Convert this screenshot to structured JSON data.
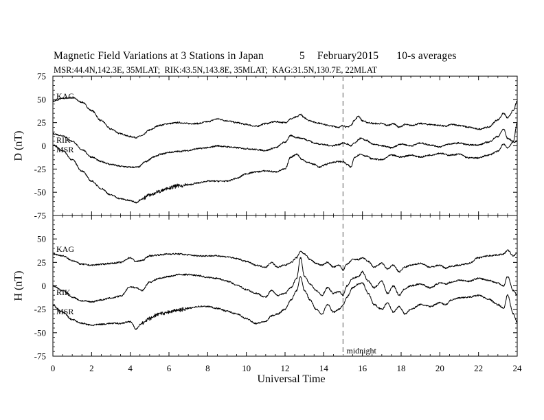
{
  "chart_data": [
    {
      "type": "line",
      "panel": "D",
      "title": "Magnetic Field Variations at 3 Stations in Japan",
      "date_day": "5",
      "date_month_year": "February2015",
      "averaging": "10-s averages",
      "subtitle": "MSR:44.4N,142.3E, 35MLAT;  RIK:43.5N,143.8E, 35MLAT;  KAG:31.5N,130.7E, 22MLAT",
      "ylabel": "D (nT)",
      "xlabel": "",
      "xlim": [
        0,
        24
      ],
      "ylim": [
        -75,
        75
      ],
      "yticks": [
        "75",
        "50",
        "25",
        "0",
        "-25",
        "-50",
        "-75"
      ],
      "series": [
        {
          "name": "KAG",
          "x": [
            0,
            0.5,
            1,
            1.5,
            2,
            2.5,
            3,
            3.5,
            4,
            4.3,
            4.6,
            5,
            5.5,
            6,
            6.5,
            7,
            7.5,
            8,
            8.5,
            9,
            9.5,
            10,
            10.5,
            11,
            11.5,
            12,
            12.3,
            12.6,
            12.8,
            13,
            13.3,
            13.6,
            13.9,
            14.2,
            14.5,
            14.8,
            15,
            15.2,
            15.4,
            15.6,
            15.8,
            16,
            16.3,
            16.6,
            17,
            17.3,
            17.6,
            17.9,
            18.2,
            18.5,
            19,
            19.5,
            20,
            20.3,
            20.6,
            21,
            21.5,
            22,
            22.5,
            23,
            23.3,
            23.5,
            23.8,
            24
          ],
          "y": [
            48,
            51,
            52,
            47,
            38,
            27,
            18,
            13,
            10,
            9,
            11,
            17,
            22,
            24,
            25,
            24,
            24,
            26,
            29,
            27,
            25,
            23,
            21,
            24,
            26,
            25,
            29,
            31,
            34,
            30,
            27,
            25,
            24,
            22,
            21,
            20,
            22,
            20,
            22,
            28,
            32,
            27,
            25,
            24,
            24,
            22,
            24,
            20,
            23,
            22,
            24,
            23,
            22,
            21,
            23,
            22,
            20,
            18,
            20,
            28,
            35,
            30,
            38,
            48
          ]
        },
        {
          "name": "RIK",
          "x": [
            0,
            0.5,
            1,
            1.5,
            2,
            2.5,
            3,
            3.5,
            4,
            4.4,
            4.8,
            5.2,
            5.6,
            6,
            6.5,
            7,
            7.5,
            8,
            8.5,
            9,
            9.5,
            10,
            10.5,
            11,
            11.5,
            12,
            12.3,
            12.6,
            12.9,
            13.2,
            13.5,
            13.8,
            14.1,
            14.4,
            14.7,
            15,
            15.2,
            15.4,
            15.6,
            15.9,
            16.2,
            16.5,
            17,
            17.5,
            18,
            18.5,
            19,
            19.5,
            20,
            20.5,
            21,
            21.5,
            22,
            22.5,
            23,
            23.3,
            23.5,
            23.8,
            24
          ],
          "y": [
            13,
            11,
            5,
            -4,
            -12,
            -17,
            -20,
            -22,
            -23,
            -23,
            -17,
            -12,
            -9,
            -7,
            -6,
            -5,
            -3,
            -2,
            0,
            -1,
            -2,
            -3,
            -4,
            -5,
            -2,
            4,
            11,
            9,
            8,
            6,
            3,
            2,
            1,
            0,
            1,
            3,
            2,
            0,
            3,
            8,
            6,
            2,
            0,
            -2,
            2,
            0,
            3,
            1,
            -1,
            2,
            3,
            1,
            1,
            4,
            10,
            18,
            8,
            5,
            25
          ]
        },
        {
          "name": "MSR",
          "x": [
            0,
            0.5,
            1,
            1.5,
            2,
            2.5,
            3,
            3.5,
            4,
            4.3,
            4.6,
            5,
            5.5,
            6,
            6.5,
            7,
            7.5,
            8,
            8.5,
            9,
            9.5,
            10,
            10.5,
            11,
            11.5,
            12,
            12.3,
            12.6,
            12.9,
            13.2,
            13.5,
            13.8,
            14.1,
            14.4,
            14.7,
            15,
            15.2,
            15.4,
            15.6,
            15.9,
            16.2,
            16.5,
            17,
            17.5,
            18,
            18.5,
            19,
            19.5,
            20,
            20.5,
            21,
            21.5,
            22,
            22.5,
            23,
            23.3,
            23.5,
            23.8,
            24
          ],
          "y": [
            1,
            -5,
            -15,
            -27,
            -38,
            -46,
            -53,
            -57,
            -59,
            -61,
            -57,
            -53,
            -49,
            -45,
            -43,
            -42,
            -40,
            -38,
            -38,
            -38,
            -35,
            -30,
            -28,
            -27,
            -28,
            -25,
            -12,
            -9,
            -15,
            -18,
            -20,
            -23,
            -20,
            -18,
            -17,
            -17,
            -20,
            -23,
            -12,
            -9,
            -11,
            -14,
            -15,
            -10,
            -12,
            -10,
            -12,
            -10,
            -8,
            -10,
            -9,
            -13,
            -13,
            -10,
            -6,
            2,
            -2,
            4,
            5
          ]
        }
      ]
    },
    {
      "type": "line",
      "panel": "H",
      "ylabel": "H (nT)",
      "xlabel": "Universal Time",
      "xlim": [
        0,
        24
      ],
      "ylim": [
        -75,
        75
      ],
      "xticks": [
        "0",
        "2",
        "4",
        "6",
        "8",
        "10",
        "12",
        "14",
        "16",
        "18",
        "20",
        "22",
        "24"
      ],
      "yticks": [
        "",
        "50",
        "25",
        "0",
        "-25",
        "-50",
        "-75"
      ],
      "annotation": "midnight",
      "midnight_ut": 15,
      "series": [
        {
          "name": "KAG",
          "x": [
            0,
            0.5,
            1,
            1.5,
            2,
            2.5,
            3,
            3.5,
            4,
            4.3,
            4.6,
            5,
            5.5,
            6,
            6.5,
            7,
            7.5,
            8,
            8.5,
            9,
            9.5,
            10,
            10.5,
            11,
            11.3,
            11.6,
            12,
            12.3,
            12.6,
            12.8,
            13,
            13.3,
            13.6,
            13.9,
            14.2,
            14.5,
            14.8,
            15,
            15.2,
            15.5,
            15.8,
            16,
            16.3,
            16.6,
            17,
            17.3,
            17.6,
            17.9,
            18.2,
            18.5,
            19,
            19.5,
            20,
            20.3,
            20.6,
            21,
            21.5,
            22,
            22.5,
            23,
            23.3,
            23.5,
            23.8,
            24
          ],
          "y": [
            34,
            32,
            27,
            23,
            22,
            23,
            24,
            25,
            30,
            26,
            27,
            32,
            33,
            34,
            34,
            33,
            32,
            32,
            32,
            31,
            29,
            26,
            22,
            20,
            25,
            20,
            22,
            25,
            30,
            37,
            34,
            28,
            24,
            22,
            25,
            20,
            22,
            17,
            23,
            28,
            28,
            30,
            26,
            20,
            24,
            18,
            22,
            15,
            20,
            22,
            24,
            20,
            22,
            19,
            21,
            22,
            24,
            30,
            32,
            33,
            34,
            38,
            32,
            35
          ]
        },
        {
          "name": "RIK",
          "x": [
            0,
            0.5,
            1,
            1.5,
            2,
            2.5,
            3,
            3.5,
            4,
            4.3,
            4.6,
            5,
            5.5,
            6,
            6.5,
            7,
            7.5,
            8,
            8.5,
            9,
            9.5,
            10,
            10.5,
            11,
            11.3,
            11.6,
            12,
            12.3,
            12.6,
            12.8,
            13,
            13.3,
            13.6,
            13.9,
            14.2,
            14.5,
            14.8,
            15,
            15.2,
            15.5,
            15.8,
            16,
            16.3,
            16.6,
            17,
            17.3,
            17.6,
            17.9,
            18.2,
            18.5,
            19,
            19.5,
            20,
            20.3,
            20.6,
            21,
            21.5,
            22,
            22.5,
            23,
            23.3,
            23.5,
            23.8,
            24
          ],
          "y": [
            0,
            -5,
            -12,
            -16,
            -17,
            -15,
            -13,
            -11,
            -1,
            -2,
            -5,
            4,
            8,
            10,
            12,
            12,
            11,
            9,
            8,
            5,
            1,
            -4,
            -8,
            -12,
            -5,
            -10,
            -8,
            -2,
            8,
            30,
            10,
            2,
            -5,
            -10,
            -2,
            -8,
            -6,
            -10,
            0,
            8,
            10,
            15,
            5,
            -2,
            5,
            -8,
            0,
            -10,
            -3,
            0,
            2,
            -2,
            3,
            2,
            4,
            6,
            5,
            8,
            6,
            3,
            0,
            10,
            -5,
            -10
          ]
        },
        {
          "name": "MSR",
          "x": [
            0,
            0.5,
            1,
            1.5,
            2,
            2.5,
            3,
            3.5,
            4,
            4.3,
            4.6,
            5,
            5.5,
            6,
            6.5,
            7,
            7.5,
            8,
            8.5,
            9,
            9.5,
            10,
            10.5,
            11,
            11.3,
            11.6,
            12,
            12.3,
            12.6,
            12.8,
            13,
            13.3,
            13.6,
            13.9,
            14.2,
            14.5,
            14.8,
            15,
            15.2,
            15.5,
            15.8,
            16,
            16.3,
            16.6,
            17,
            17.3,
            17.6,
            17.9,
            18.2,
            18.5,
            19,
            19.5,
            20,
            20.3,
            20.6,
            21,
            21.5,
            22,
            22.5,
            23,
            23.3,
            23.5,
            23.8,
            24
          ],
          "y": [
            -21,
            -28,
            -36,
            -40,
            -42,
            -41,
            -40,
            -40,
            -38,
            -46,
            -40,
            -35,
            -30,
            -28,
            -26,
            -24,
            -22,
            -22,
            -24,
            -27,
            -30,
            -35,
            -40,
            -38,
            -32,
            -30,
            -25,
            -15,
            -5,
            10,
            -5,
            -15,
            -25,
            -30,
            -20,
            -28,
            -25,
            -20,
            -12,
            -2,
            2,
            3,
            -8,
            -20,
            -25,
            -18,
            -28,
            -22,
            -30,
            -25,
            -20,
            -22,
            -18,
            -20,
            -15,
            -13,
            -12,
            -10,
            -14,
            -20,
            -24,
            -10,
            -30,
            -39
          ]
        }
      ]
    }
  ]
}
